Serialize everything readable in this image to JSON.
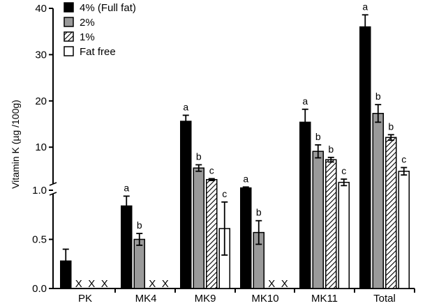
{
  "chart_data": {
    "type": "bar",
    "title": "",
    "xlabel": "",
    "ylabel": "Vitamin K (µg /100g)",
    "axis_note": "Broken y-axis: lower segment 0 to 1.0, upper segment 1.0 to 40",
    "lower_axis": {
      "ylim": [
        0,
        1.0
      ],
      "ticks": [
        "0.0",
        "0.5",
        "1.0"
      ]
    },
    "upper_axis": {
      "ylim": [
        1.0,
        40
      ],
      "ticks": [
        "10",
        "20",
        "30",
        "40"
      ]
    },
    "categories": [
      "PK",
      "MK4",
      "MK9",
      "MK10",
      "MK11",
      "Total"
    ],
    "not_detected_marker": "X",
    "series": [
      {
        "name": "4% (Full fat)",
        "fill": "#000000",
        "pattern": "solid",
        "values": [
          0.28,
          0.84,
          15.6,
          1.2,
          15.4,
          36.0
        ],
        "errors": [
          0.12,
          0.1,
          1.3,
          0.2,
          2.8,
          2.6
        ],
        "letters": [
          "",
          "a",
          "a",
          "a",
          "a",
          "a"
        ]
      },
      {
        "name": "2%",
        "fill": "#9a9a9a",
        "pattern": "solid",
        "values": [
          null,
          0.5,
          5.5,
          0.57,
          9.1,
          17.3
        ],
        "errors": [
          null,
          0.06,
          0.7,
          0.12,
          1.4,
          1.9
        ],
        "letters": [
          "",
          "b",
          "b",
          "b",
          "b",
          "b"
        ]
      },
      {
        "name": "1%",
        "fill": "#ffffff",
        "pattern": "hatch",
        "values": [
          null,
          null,
          3.0,
          null,
          7.3,
          12.1
        ],
        "errors": [
          null,
          null,
          0.2,
          null,
          0.5,
          0.6
        ],
        "letters": [
          "",
          "",
          "c",
          "",
          "b",
          "b"
        ]
      },
      {
        "name": "Fat free",
        "fill": "#ffffff",
        "pattern": "solid",
        "values": [
          null,
          null,
          0.61,
          null,
          2.4,
          4.8
        ],
        "errors": [
          null,
          null,
          0.27,
          null,
          0.7,
          0.8
        ],
        "letters": [
          "",
          "",
          "c",
          "",
          "c",
          "c"
        ]
      }
    ],
    "legend": {
      "placement": "top-left",
      "entries": [
        "4% (Full fat)",
        "2%",
        "1%",
        "Fat free"
      ]
    }
  }
}
